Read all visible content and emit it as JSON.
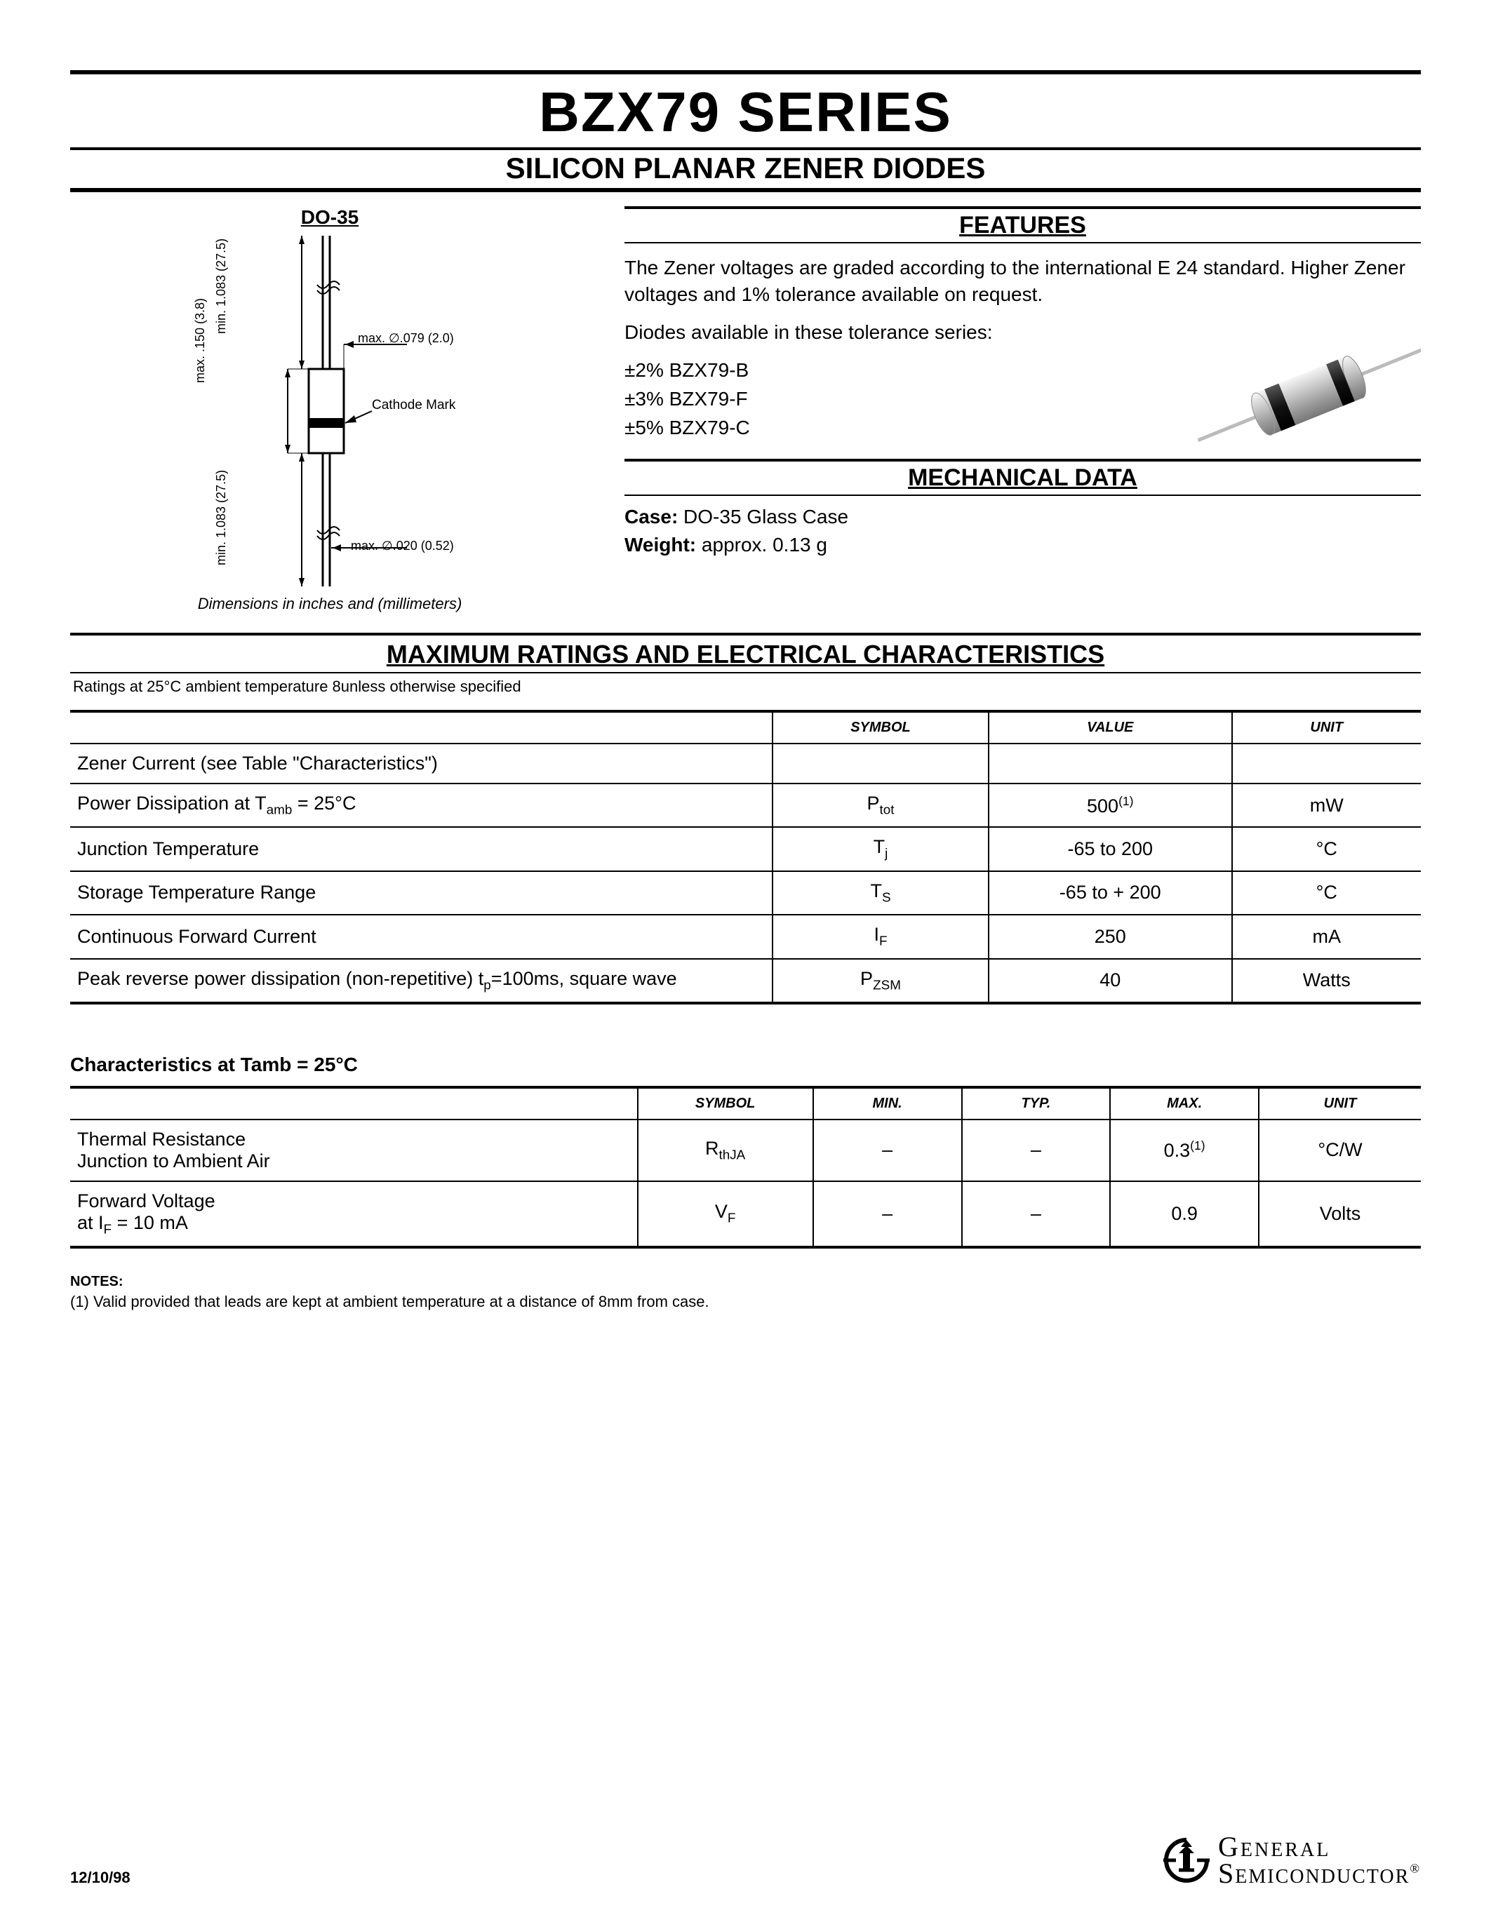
{
  "header": {
    "title": "BZX79 SERIES",
    "subtitle": "SILICON PLANAR ZENER DIODES"
  },
  "package": {
    "label": "DO-35",
    "caption": "Dimensions in inches and (millimeters)",
    "dims": {
      "body_len": "max. .150 (3.8)",
      "lead_len_top": "min. 1.083 (27.5)",
      "lead_len_bot": "min. 1.083 (27.5)",
      "body_dia": "max. ∅.079 (2.0)",
      "lead_dia": "max. ∅.020 (0.52)",
      "cathode": "Cathode Mark"
    },
    "colors": {
      "lines": "#000000",
      "fill": "#ffffff"
    }
  },
  "features": {
    "heading": "FEATURES",
    "p1": "The Zener voltages are graded according to the international E 24 standard. Higher Zener voltages and 1% tolerance available on request.",
    "p2": "Diodes available in these tolerance series:",
    "tolerances": [
      "±2% BZX79-B",
      "±3% BZX79-F",
      "±5% BZX79-C"
    ]
  },
  "mechanical": {
    "heading": "MECHANICAL DATA",
    "case_label": "Case:",
    "case_value": "DO-35 Glass Case",
    "weight_label": "Weight:",
    "weight_value": "approx. 0.13 g"
  },
  "ratings": {
    "heading": "MAXIMUM RATINGS AND ELECTRICAL CHARACTERISTICS",
    "note": "Ratings at 25°C ambient temperature 8unless otherwise specified",
    "columns": [
      "SYMBOL",
      "VALUE",
      "UNIT"
    ],
    "rows": [
      {
        "param": "Zener Current (see Table \"Characteristics\")",
        "symbol": "",
        "value": "",
        "unit": ""
      },
      {
        "param_html": "Power Dissipation at T<sub>amb</sub> = 25°C",
        "symbol_html": "P<sub>tot</sub>",
        "value_html": "500<sup>(1)</sup>",
        "unit": "mW"
      },
      {
        "param": "Junction Temperature",
        "symbol_html": "T<sub>j</sub>",
        "value": "-65 to 200",
        "unit": "°C"
      },
      {
        "param": "Storage Temperature Range",
        "symbol_html": "T<sub>S</sub>",
        "value": "-65 to + 200",
        "unit": "°C"
      },
      {
        "param": "Continuous Forward Current",
        "symbol_html": "I<sub>F</sub>",
        "value": "250",
        "unit": "mA"
      },
      {
        "param_html": "Peak reverse power dissipation (non-repetitive) t<sub>p</sub>=100ms, square wave",
        "symbol_html": "P<sub>ZSM</sub>",
        "value": "40",
        "unit": "Watts"
      }
    ]
  },
  "characteristics": {
    "heading": "Characteristics at Tamb = 25°C",
    "columns": [
      "SYMBOL",
      "MIN.",
      "TYP.",
      "MAX.",
      "UNIT"
    ],
    "rows": [
      {
        "param_html": "Thermal Resistance<br>Junction to Ambient Air",
        "symbol_html": "R<sub>thJA</sub>",
        "min": "–",
        "typ": "–",
        "max_html": "0.3<sup>(1)</sup>",
        "unit": "°C/W"
      },
      {
        "param_html": "Forward Voltage<br>at I<sub>F</sub> = 10 mA",
        "symbol_html": "V<sub>F</sub>",
        "min": "–",
        "typ": "–",
        "max": "0.9",
        "unit": "Volts"
      }
    ]
  },
  "notes": {
    "heading": "NOTES:",
    "n1": "(1) Valid provided that leads are kept at ambient temperature at a distance of 8mm from case."
  },
  "footer": {
    "date": "12/10/98",
    "company_l1": "General",
    "company_l2": "Semiconductor"
  },
  "diode_render": {
    "body_fill": "#bfbfbf",
    "band_fill": "#2b2b2b",
    "highlight": "#f2f2f2",
    "lead": "#cfcfcf"
  }
}
